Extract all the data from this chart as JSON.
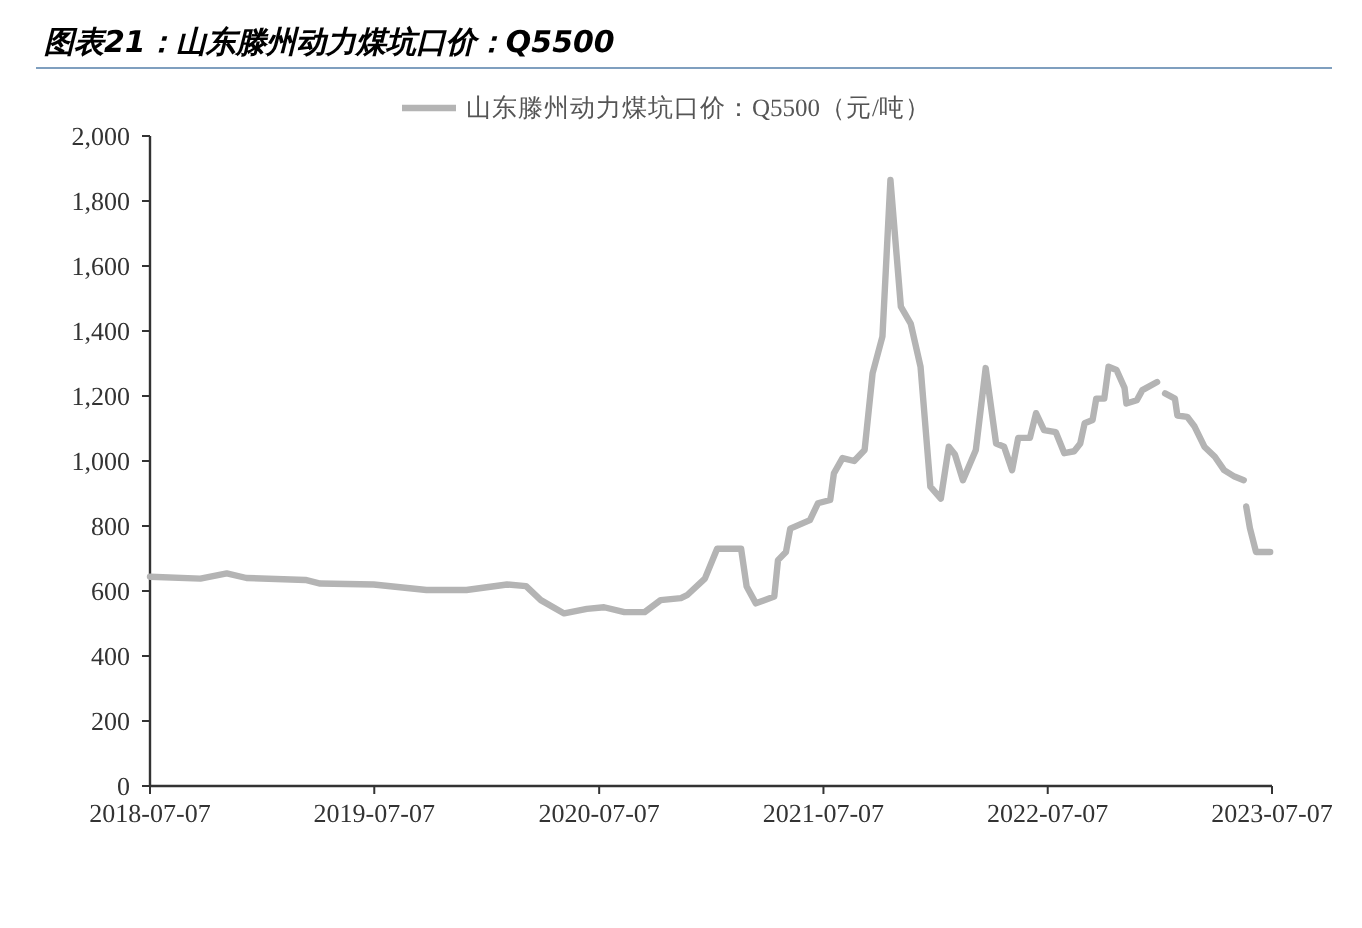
{
  "chart_data": {
    "type": "line",
    "title": "图表21：山东滕州动力煤坑口价：Q5500",
    "x": [
      "2018-07-07",
      "2018-09-27",
      "2018-11-09",
      "2018-12-11",
      "2019-03-17",
      "2019-04-10",
      "2019-07-06",
      "2019-09-30",
      "2019-12-04",
      "2020-02-08",
      "2020-03-10",
      "2020-04-03",
      "2020-05-11",
      "2020-06-17",
      "2020-07-15",
      "2020-08-17",
      "2020-09-19",
      "2020-10-15",
      "2020-11-17",
      "2020-11-27",
      "2020-12-26",
      "2021-01-15",
      "2021-02-23",
      "2021-03-04",
      "2021-03-19",
      "2021-04-18",
      "2021-04-24",
      "2021-05-07",
      "2021-05-14",
      "2021-06-15",
      "2021-06-28",
      "2021-07-18",
      "2021-07-24",
      "2021-08-07",
      "2021-08-26",
      "2021-09-12",
      "2021-09-25",
      "2021-10-11",
      "2021-10-24",
      "2021-11-10",
      "2021-11-26",
      "2021-12-12",
      "2021-12-28",
      "2022-01-14",
      "2022-01-27",
      "2022-02-06",
      "2022-02-19",
      "2022-03-12",
      "2022-03-28",
      "2022-04-14",
      "2022-04-27",
      "2022-05-10",
      "2022-05-20",
      "2022-06-08",
      "2022-06-18",
      "2022-07-01",
      "2022-07-20",
      "2022-08-03",
      "2022-08-19",
      "2022-08-29",
      "2022-09-05",
      "2022-09-18",
      "2022-09-24",
      "2022-10-07",
      "2022-10-14",
      "2022-10-27",
      "2022-11-09",
      "2022-11-12",
      "2022-11-29",
      "2022-12-08",
      "2023-01-01",
      "2023-01-08",
      "2023-01-14",
      "2023-01-30",
      "2023-02-03",
      "2023-02-19",
      "2023-03-03",
      "2023-03-19",
      "2023-04-05",
      "2023-04-20",
      "2023-05-07",
      "2023-05-22",
      "2023-05-24",
      "2023-05-26",
      "2023-06-01",
      "2023-06-11",
      "2023-07-04"
    ],
    "series": [
      {
        "name": "山东滕州动力煤坑口价：Q5500（元/吨）",
        "color": "#b4b4b4",
        "values": [
          644,
          638,
          654,
          640,
          634,
          623,
          620,
          603,
          603,
          620,
          615,
          572,
          531,
          545,
          550,
          535,
          535,
          572,
          578,
          587,
          638,
          730,
          730,
          614,
          562,
          583,
          695,
          720,
          792,
          818,
          870,
          880,
          962,
          1009,
          1000,
          1034,
          1270,
          1383,
          1865,
          1475,
          1423,
          1290,
          921,
          884,
          1044,
          1020,
          941,
          1034,
          1286,
          1054,
          1044,
          972,
          1071,
          1071,
          1147,
          1095,
          1089,
          1024,
          1030,
          1054,
          1116,
          1126,
          1192,
          1192,
          1290,
          1280,
          1225,
          1177,
          1187,
          1218,
          1243,
          null,
          1208,
          1192,
          1140,
          1136,
          1106,
          1044,
          1013,
          972,
          952,
          941,
          null,
          860,
          794,
          720,
          720
        ]
      }
    ],
    "xlim": [
      "2018-07-07",
      "2023-07-07"
    ],
    "xticks": [
      {
        "value": "2018-07-07",
        "label": "2018-07-07"
      },
      {
        "value": "2019-07-07",
        "label": "2019-07-07"
      },
      {
        "value": "2020-07-07",
        "label": "2020-07-07"
      },
      {
        "value": "2021-07-07",
        "label": "2021-07-07"
      },
      {
        "value": "2022-07-07",
        "label": "2022-07-07"
      },
      {
        "value": "2023-07-07",
        "label": "2023-07-07"
      }
    ],
    "ylim": [
      0,
      2000
    ],
    "yticks": [
      {
        "value": 0,
        "label": "0"
      },
      {
        "value": 200,
        "label": "200"
      },
      {
        "value": 400,
        "label": "400"
      },
      {
        "value": 600,
        "label": "600"
      },
      {
        "value": 800,
        "label": "800"
      },
      {
        "value": 1000,
        "label": "1,000"
      },
      {
        "value": 1200,
        "label": "1,200"
      },
      {
        "value": 1400,
        "label": "1,400"
      },
      {
        "value": 1600,
        "label": "1,600"
      },
      {
        "value": 1800,
        "label": "1,800"
      },
      {
        "value": 2000,
        "label": "2,000"
      }
    ],
    "legend": "top",
    "grid": false
  }
}
